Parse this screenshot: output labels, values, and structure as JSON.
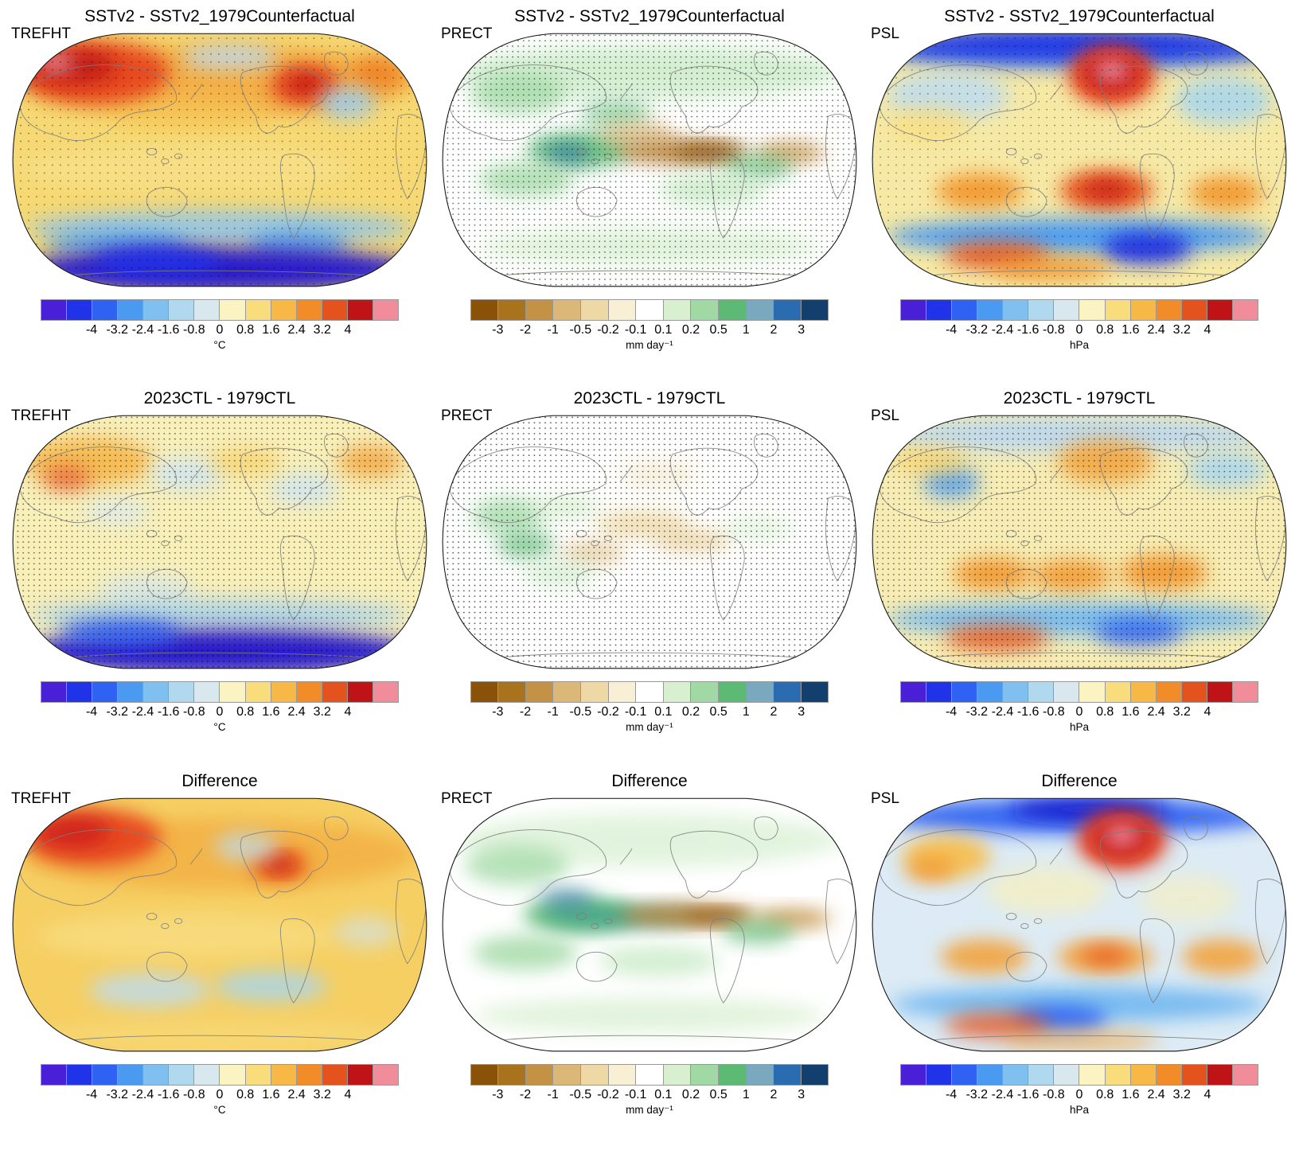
{
  "rows": [
    {
      "title": "SSTv2 - SSTv2_1979Counterfactual"
    },
    {
      "title": "2023CTL - 1979CTL"
    },
    {
      "title": "Difference"
    }
  ],
  "columns": [
    {
      "variable": "TREFHT",
      "unit": "°C",
      "colorbar": "temp"
    },
    {
      "variable": "PRECT",
      "unit": "mm day⁻¹",
      "colorbar": "prect"
    },
    {
      "variable": "PSL",
      "unit": "hPa",
      "colorbar": "temp"
    }
  ],
  "colorbars": {
    "temp": {
      "colors": [
        "#4a1fd8",
        "#2133e8",
        "#2f62f2",
        "#4a9af2",
        "#7fc0f0",
        "#b0d9f0",
        "#d8e8ee",
        "#fbf3c1",
        "#f9dc7c",
        "#f7b845",
        "#f28c28",
        "#e4531d",
        "#c01318",
        "#f18c9a"
      ],
      "ticks": [
        "-4",
        "-3.2",
        "-2.4",
        "-1.6",
        "-0.8",
        "0",
        "0.8",
        "1.6",
        "2.4",
        "3.2",
        "4"
      ],
      "tick_start": 2
    },
    "prect": {
      "colors": [
        "#8a5108",
        "#a9731e",
        "#c49245",
        "#dbb878",
        "#eed9a6",
        "#f8efd4",
        "#ffffff",
        "#d8efd0",
        "#a0d9a4",
        "#5cba74",
        "#7aa8bf",
        "#2b6cb0",
        "#123f6d"
      ],
      "ticks": [
        "-3",
        "-2",
        "-1",
        "-0.5",
        "-0.2",
        "-0.1",
        "0.1",
        "0.2",
        "0.5",
        "1",
        "2",
        "3"
      ],
      "tick_start": 1
    }
  },
  "chart_data": [
    {
      "panel": "row1_col1",
      "type": "heatmap",
      "title": "SSTv2 - SSTv2_1979Counterfactual",
      "variable": "TREFHT",
      "units": "°C",
      "colorbar_ticks": [
        -4,
        -3.2,
        -2.4,
        -1.6,
        -0.8,
        0,
        0.8,
        1.6,
        2.4,
        3.2,
        4
      ],
      "stippling": true,
      "summary": "Global map, Pacific-centered. Widespread warming of ~0.8-1.6 °C over most land and ocean; strong warming (>3-4 °C, saturating to pink) over Siberia/northern Eurasia and eastern Canada; cool anomalies over the central Arctic, North Atlantic south of Greenland and Southern Ocean; strong cooling (<-4 °C, deep blue) over Antarctica. Sparse stippling marks significance."
    },
    {
      "panel": "row1_col2",
      "type": "heatmap",
      "title": "SSTv2 - SSTv2_1979Counterfactual",
      "variable": "PRECT",
      "units": "mm day⁻¹",
      "colorbar_ticks": [
        -3,
        -2,
        -1,
        -0.5,
        -0.2,
        -0.1,
        0.1,
        0.2,
        0.5,
        1,
        2,
        3
      ],
      "stippling": true,
      "summary": "Wet anomalies (0.1-1 mm/day, green) over much of the tropics, Maritime Continent and NH mid/high latitudes with small strong wet cores (blue); dry bands (-0.5 to -3 mm/day, tan to dark brown) along the equatorial east Pacific and tropical Atlantic. Dense stippling over most of the map."
    },
    {
      "panel": "row1_col3",
      "type": "heatmap",
      "title": "SSTv2 - SSTv2_1979Counterfactual",
      "variable": "PSL",
      "units": "hPa",
      "colorbar_ticks": [
        -4,
        -3.2,
        -2.4,
        -1.6,
        -0.8,
        0,
        0.8,
        1.6,
        2.4,
        3.2,
        4
      ],
      "stippling": true,
      "summary": "Negative SLP anomalies (-2 to -4 hPa) along the Arctic rim and over the Southern Ocean; one intense positive anomaly (>4 hPa, red/pink core) centered near Greenland/Arctic; weak positive belt (~0.8-1.6 hPa) in the subtropics with stronger positive centers (2-4 hPa) in southern mid-latitudes and near Antarctica."
    },
    {
      "panel": "row2_col1",
      "type": "heatmap",
      "title": "2023CTL - 1979CTL",
      "variable": "TREFHT",
      "units": "°C",
      "colorbar_ticks": [
        -4,
        -3.2,
        -2.4,
        -1.6,
        -0.8,
        0,
        0.8,
        1.6,
        2.4,
        3.2,
        4
      ],
      "stippling": true,
      "summary": "Mostly weak warming (0-1.6 °C, pale yellow) with orange patches over northern Eurasia; scattered weak cool patches over oceans; strong cooling (<-4 °C) over Antarctica. Very dense stippling indicates low significance over most of the globe."
    },
    {
      "panel": "row2_col2",
      "type": "heatmap",
      "title": "2023CTL - 1979CTL",
      "variable": "PRECT",
      "units": "mm day⁻¹",
      "colorbar_ticks": [
        -3,
        -2,
        -1,
        -0.5,
        -0.2,
        -0.1,
        0.1,
        0.2,
        0.5,
        1,
        2,
        3
      ],
      "stippling": true,
      "summary": "Mostly near-zero anomalies (white, ±0.1 mm/day) with modest wet patches (green) over the Indian Ocean/Maritime Continent and weak dry patches (pale tan) in the tropics. Very dense stippling everywhere."
    },
    {
      "panel": "row2_col3",
      "type": "heatmap",
      "title": "2023CTL - 1979CTL",
      "variable": "PSL",
      "units": "hPa",
      "colorbar_ticks": [
        -4,
        -3.2,
        -2.4,
        -1.6,
        -0.8,
        0,
        0.8,
        1.6,
        2.4,
        3.2,
        4
      ],
      "stippling": true,
      "summary": "Weak positive anomalies (~0.8-2.4 hPa) over mid-latitudes and an orange center over the Arctic/North America sector; weak negative (pale blue) over high northern latitudes; negative belt over the Southern Ocean with positive centers (orange) in southern mid-latitudes. Dense stippling."
    },
    {
      "panel": "row3_col1",
      "type": "heatmap",
      "title": "Difference",
      "variable": "TREFHT",
      "units": "°C",
      "colorbar_ticks": [
        -4,
        -3.2,
        -2.4,
        -1.6,
        -0.8,
        0,
        0.8,
        1.6,
        2.4,
        3.2,
        4
      ],
      "stippling": false,
      "summary": "Difference field: widespread 0.8-2.4 °C warming (yellow-orange) nearly everywhere; strongest warming (>3 °C) over northwestern Eurasia and a red core over western North America; weak cool patches (light blue) over the Southern Ocean; no deep-blue Antarctic cooling."
    },
    {
      "panel": "row3_col2",
      "type": "heatmap",
      "title": "Difference",
      "variable": "PRECT",
      "units": "mm day⁻¹",
      "colorbar_ticks": [
        -3,
        -2,
        -1,
        -0.5,
        -0.2,
        -0.1,
        0.1,
        0.2,
        0.5,
        1,
        2,
        3
      ],
      "stippling": false,
      "summary": "Difference field: wet anomalies (green/teal streaks) across the tropical Indo-Pacific and mid-latitudes, flanked by dry bands (brown) along the equatorial central Pacific and tropical Atlantic/South America."
    },
    {
      "panel": "row3_col3",
      "type": "heatmap",
      "title": "Difference",
      "variable": "PSL",
      "units": "hPa",
      "colorbar_ticks": [
        -4,
        -3.2,
        -2.4,
        -1.6,
        -0.8,
        0,
        0.8,
        1.6,
        2.4,
        3.2,
        4
      ],
      "stippling": false,
      "summary": "Difference field: strong positive anomaly (>4 hPa, red/pink core) near Greenland surrounded by deep negative anomalies over the Arctic; light-blue negative field over much of the oceans; yellow-orange positive centers over Asia and in southern mid-latitudes; negative belt around Antarctica."
    }
  ]
}
